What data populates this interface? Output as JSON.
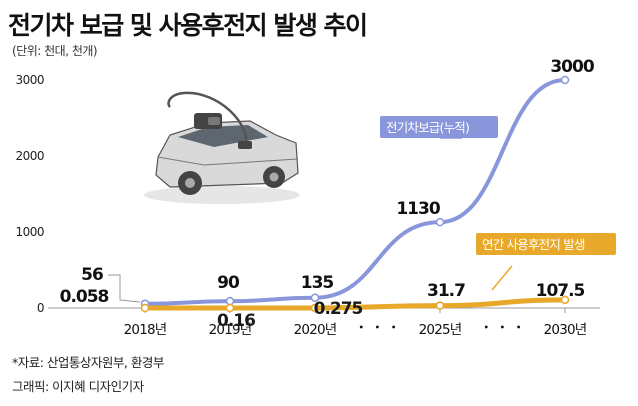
{
  "title": "전기차 보급 및 사용후전지 발생 추이",
  "unit_note": "(단위: 천대, 천개)",
  "source": "*자료: 산업통상자원부, 환경부",
  "credit": "그래픽: 이지혜 디자인기자",
  "colors": {
    "ev": "#8a96db",
    "battery": "#e8a92a",
    "axis": "#999999"
  },
  "chart_data": {
    "type": "line",
    "categories": [
      "2018년",
      "2019년",
      "2020년",
      "2025년",
      "2030년"
    ],
    "gap_marker": "・ ・ ・",
    "yticks": [
      0,
      1000,
      2000,
      3000
    ],
    "ylim": [
      0,
      3000
    ],
    "series": [
      {
        "name": "전기차보급(누적)",
        "values": [
          56,
          90,
          135,
          1130,
          3000
        ],
        "labels": [
          "56",
          "90",
          "135",
          "1130",
          "3000"
        ]
      },
      {
        "name": "연간 사용후전지 발생",
        "values": [
          0.058,
          0.16,
          0.275,
          31.7,
          107.5
        ],
        "labels": [
          "0.058",
          "0.16",
          "0.275",
          "31.7",
          "107.5"
        ]
      }
    ]
  },
  "icon": "electric-car-plug-icon"
}
